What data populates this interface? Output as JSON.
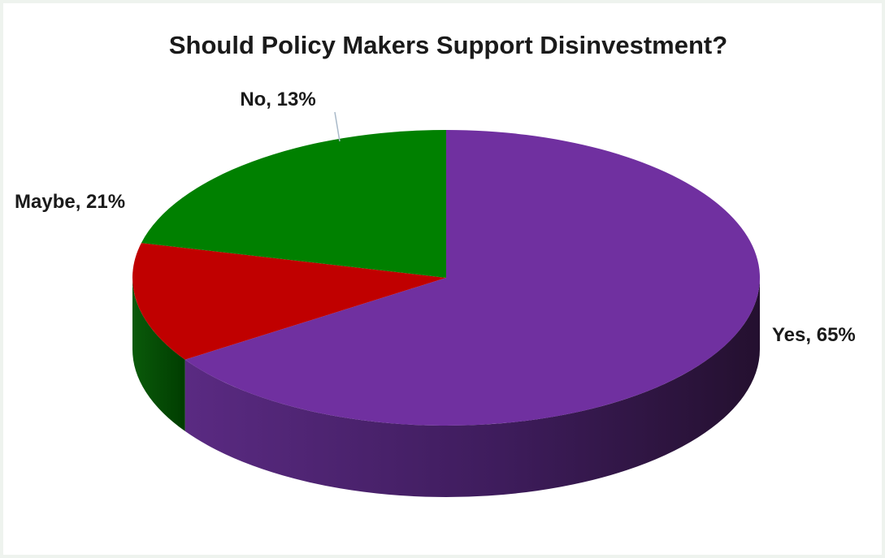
{
  "chart_data": {
    "type": "pie",
    "title": "Should Policy Makers Support Disinvestment?",
    "slices": [
      {
        "label": "Yes, 65%",
        "category": "Yes",
        "value": 65,
        "color": "#7030a0"
      },
      {
        "label": "No, 13%",
        "category": "No",
        "value": 13,
        "color": "#c00000"
      },
      {
        "label": "Maybe, 21%",
        "category": "Maybe",
        "value": 21,
        "color": "#008000"
      }
    ],
    "style": "3d",
    "legend": "none"
  }
}
